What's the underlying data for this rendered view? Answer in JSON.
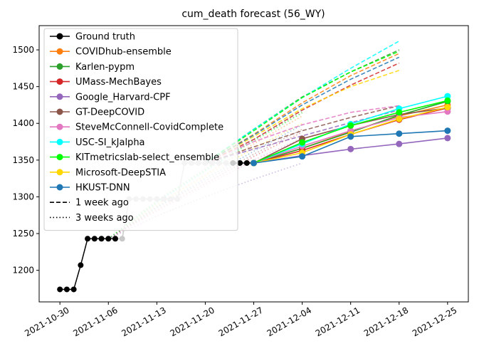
{
  "chart_data": {
    "type": "line",
    "title": "cum_death forecast (56_WY)",
    "xlabel": "",
    "ylabel": "",
    "x_ticks": [
      "2021-10-30",
      "2021-11-06",
      "2021-11-13",
      "2021-11-20",
      "2021-11-27",
      "2021-12-04",
      "2021-12-11",
      "2021-12-18",
      "2021-12-25"
    ],
    "y_ticks": [
      1200,
      1250,
      1300,
      1350,
      1400,
      1450,
      1500
    ],
    "xlim": [
      "2021-10-27",
      "2021-12-28"
    ],
    "ylim": [
      1157,
      1533
    ],
    "grid": false,
    "legend_position": "top-left",
    "legend": [
      {
        "label": "Ground truth",
        "color": "#000000",
        "style": "marker"
      },
      {
        "label": "COVIDhub-ensemble",
        "color": "#ff7f0e",
        "style": "marker"
      },
      {
        "label": "Karlen-pypm",
        "color": "#2ca02c",
        "style": "marker"
      },
      {
        "label": "UMass-MechBayes",
        "color": "#d62728",
        "style": "marker"
      },
      {
        "label": "Google_Harvard-CPF",
        "color": "#9467bd",
        "style": "marker"
      },
      {
        "label": "GT-DeepCOVID",
        "color": "#8c564b",
        "style": "marker"
      },
      {
        "label": "SteveMcConnell-CovidComplete",
        "color": "#e377c2",
        "style": "marker"
      },
      {
        "label": "USC-SI_kJalpha",
        "color": "#00ffff",
        "style": "marker"
      },
      {
        "label": "KITmetricslab-select_ensemble",
        "color": "#00ff00",
        "style": "marker"
      },
      {
        "label": "Microsoft-DeepSTIA",
        "color": "#ffd700",
        "style": "marker"
      },
      {
        "label": "HKUST-DNN",
        "color": "#1f77b4",
        "style": "marker"
      },
      {
        "label": "1 week ago",
        "color": "#000000",
        "style": "dashed"
      },
      {
        "label": "3 weeks ago",
        "color": "#000000",
        "style": "dotted"
      }
    ],
    "ground_truth": {
      "name": "Ground truth",
      "color": "#000000",
      "x": [
        "2021-10-30",
        "2021-10-31",
        "2021-11-01",
        "2021-11-02",
        "2021-11-03",
        "2021-11-04",
        "2021-11-05",
        "2021-11-06",
        "2021-11-07",
        "2021-11-08",
        "2021-11-09",
        "2021-11-10",
        "2021-11-11",
        "2021-11-12",
        "2021-11-13",
        "2021-11-14",
        "2021-11-15",
        "2021-11-16",
        "2021-11-17",
        "2021-11-18",
        "2021-11-19",
        "2021-11-20",
        "2021-11-21",
        "2021-11-22",
        "2021-11-23",
        "2021-11-24",
        "2021-11-25",
        "2021-11-26",
        "2021-11-27"
      ],
      "y": [
        1174,
        1174,
        1174,
        1207,
        1243,
        1243,
        1243,
        1243,
        1243,
        1243,
        1297,
        1297,
        1297,
        1297,
        1297,
        1297,
        1297,
        1297,
        1346,
        1346,
        1346,
        1346,
        1346,
        1346,
        1346,
        1346,
        1346,
        1346,
        1346
      ],
      "faded_after": "2021-11-07",
      "faded_before": "2021-11-24"
    },
    "current_forecasts": [
      {
        "name": "COVIDhub-ensemble",
        "color": "#ff7f0e",
        "x": [
          "2021-11-27",
          "2021-12-04",
          "2021-12-11",
          "2021-12-18",
          "2021-12-25"
        ],
        "y": [
          1346,
          1366,
          1389,
          1410,
          1425
        ]
      },
      {
        "name": "Karlen-pypm",
        "color": "#2ca02c",
        "x": [
          "2021-11-27",
          "2021-12-04",
          "2021-12-11",
          "2021-12-18",
          "2021-12-25"
        ],
        "y": [
          1346,
          1366,
          1388,
          1411,
          1430
        ]
      },
      {
        "name": "UMass-MechBayes",
        "color": "#d62728",
        "x": [
          "2021-11-27",
          "2021-12-04",
          "2021-12-11",
          "2021-12-18",
          "2021-12-25"
        ],
        "y": [
          1346,
          1363,
          1385,
          1405,
          1421
        ]
      },
      {
        "name": "Google_Harvard-CPF",
        "color": "#9467bd",
        "x": [
          "2021-11-27",
          "2021-12-04",
          "2021-12-11",
          "2021-12-18",
          "2021-12-25"
        ],
        "y": [
          1346,
          1356,
          1365,
          1372,
          1380
        ]
      },
      {
        "name": "GT-DeepCOVID",
        "color": "#8c564b",
        "x": [
          "2021-11-27",
          "2021-12-04",
          "2021-12-11",
          "2021-12-18",
          "2021-12-25"
        ],
        "y": [
          1346,
          1379,
          1397,
          1412,
          1421
        ]
      },
      {
        "name": "SteveMcConnell-CovidComplete",
        "color": "#e377c2",
        "x": [
          "2021-11-27",
          "2021-12-04",
          "2021-12-11",
          "2021-12-18",
          "2021-12-25"
        ],
        "y": [
          1346,
          1369,
          1390,
          1408,
          1416
        ]
      },
      {
        "name": "USC-SI_kJalpha",
        "color": "#00ffff",
        "x": [
          "2021-11-27",
          "2021-12-04",
          "2021-12-11",
          "2021-12-18",
          "2021-12-25"
        ],
        "y": [
          1346,
          1372,
          1399,
          1420,
          1437
        ]
      },
      {
        "name": "KITmetricslab-select_ensemble",
        "color": "#00ff00",
        "x": [
          "2021-11-27",
          "2021-12-04",
          "2021-12-11",
          "2021-12-18",
          "2021-12-25"
        ],
        "y": [
          1346,
          1374,
          1397,
          1415,
          1431
        ]
      },
      {
        "name": "Microsoft-DeepSTIA",
        "color": "#ffd700",
        "x": [
          "2021-11-27",
          "2021-12-04",
          "2021-12-11",
          "2021-12-18",
          "2021-12-25"
        ],
        "y": [
          1346,
          1360,
          1385,
          1406,
          1422
        ]
      },
      {
        "name": "HKUST-DNN",
        "color": "#1f77b4",
        "x": [
          "2021-11-27",
          "2021-12-04",
          "2021-12-11",
          "2021-12-18",
          "2021-12-25"
        ],
        "y": [
          1346,
          1355,
          1382,
          1386,
          1390
        ]
      }
    ],
    "forecasts_1_week_ago": [
      {
        "name": "COVIDhub-ensemble",
        "color": "#ff7f0e",
        "x": [
          "2021-11-20",
          "2021-11-27",
          "2021-12-04",
          "2021-12-11",
          "2021-12-18"
        ],
        "y": [
          1346,
          1385,
          1428,
          1465,
          1495
        ]
      },
      {
        "name": "Karlen-pypm",
        "color": "#2ca02c",
        "x": [
          "2021-11-20",
          "2021-11-27",
          "2021-12-04",
          "2021-12-11",
          "2021-12-18"
        ],
        "y": [
          1346,
          1392,
          1436,
          1470,
          1500
        ]
      },
      {
        "name": "UMass-MechBayes",
        "color": "#d62728",
        "x": [
          "2021-11-20",
          "2021-11-27",
          "2021-12-04",
          "2021-12-11",
          "2021-12-18"
        ],
        "y": [
          1346,
          1378,
          1418,
          1452,
          1482
        ]
      },
      {
        "name": "Google_Harvard-CPF",
        "color": "#9467bd",
        "x": [
          "2021-11-20",
          "2021-11-27",
          "2021-12-04",
          "2021-12-11",
          "2021-12-18"
        ],
        "y": [
          1346,
          1365,
          1383,
          1401,
          1418
        ]
      },
      {
        "name": "GT-DeepCOVID",
        "color": "#8c564b",
        "x": [
          "2021-11-20",
          "2021-11-27",
          "2021-12-04",
          "2021-12-11",
          "2021-12-18"
        ],
        "y": [
          1346,
          1368,
          1390,
          1408,
          1424
        ]
      },
      {
        "name": "SteveMcConnell-CovidComplete",
        "color": "#e377c2",
        "x": [
          "2021-11-20",
          "2021-11-27",
          "2021-12-04",
          "2021-12-11",
          "2021-12-18"
        ],
        "y": [
          1346,
          1375,
          1398,
          1415,
          1424
        ]
      },
      {
        "name": "USC-SI_kJalpha",
        "color": "#00ffff",
        "x": [
          "2021-11-20",
          "2021-11-27",
          "2021-12-04",
          "2021-12-11",
          "2021-12-18"
        ],
        "y": [
          1346,
          1392,
          1435,
          1475,
          1512
        ]
      },
      {
        "name": "KITmetricslab-select_ensemble",
        "color": "#00ff00",
        "x": [
          "2021-11-20",
          "2021-11-27",
          "2021-12-04",
          "2021-12-11",
          "2021-12-18"
        ],
        "y": [
          1346,
          1390,
          1435,
          1470,
          1498
        ]
      },
      {
        "name": "Microsoft-DeepSTIA",
        "color": "#ffd700",
        "x": [
          "2021-11-20",
          "2021-11-27",
          "2021-12-04",
          "2021-12-11",
          "2021-12-18"
        ],
        "y": [
          1346,
          1382,
          1420,
          1450,
          1472
        ]
      },
      {
        "name": "HKUST-DNN",
        "color": "#1f77b4",
        "x": [
          "2021-11-20",
          "2021-11-27",
          "2021-12-04",
          "2021-12-11",
          "2021-12-18"
        ],
        "y": [
          1346,
          1384,
          1425,
          1460,
          1490
        ]
      }
    ],
    "forecasts_3_weeks_ago": [
      {
        "name": "COVIDhub-ensemble",
        "color": "#ff7f0e",
        "x": [
          "2021-11-06",
          "2021-11-13",
          "2021-11-20",
          "2021-11-27",
          "2021-12-04"
        ],
        "y": [
          1243,
          1290,
          1330,
          1372,
          1410
        ]
      },
      {
        "name": "Karlen-pypm",
        "color": "#2ca02c",
        "x": [
          "2021-11-06",
          "2021-11-13",
          "2021-11-20",
          "2021-11-27",
          "2021-12-04"
        ],
        "y": [
          1243,
          1295,
          1338,
          1378,
          1415
        ]
      },
      {
        "name": "UMass-MechBayes",
        "color": "#d62728",
        "x": [
          "2021-11-06",
          "2021-11-13",
          "2021-11-20",
          "2021-11-27",
          "2021-12-04"
        ],
        "y": [
          1243,
          1282,
          1318,
          1355,
          1388
        ]
      },
      {
        "name": "Google_Harvard-CPF",
        "color": "#9467bd",
        "x": [
          "2021-11-06",
          "2021-11-13",
          "2021-11-20",
          "2021-11-27",
          "2021-12-04"
        ],
        "y": [
          1243,
          1274,
          1300,
          1324,
          1346
        ]
      },
      {
        "name": "GT-DeepCOVID",
        "color": "#8c564b",
        "x": [
          "2021-11-06",
          "2021-11-13",
          "2021-11-20",
          "2021-11-27",
          "2021-12-04"
        ],
        "y": [
          1243,
          1285,
          1322,
          1358,
          1392
        ]
      },
      {
        "name": "SteveMcConnell-CovidComplete",
        "color": "#e377c2",
        "x": [
          "2021-11-06",
          "2021-11-13",
          "2021-11-20",
          "2021-11-27",
          "2021-12-04"
        ],
        "y": [
          1243,
          1280,
          1315,
          1350,
          1380
        ]
      },
      {
        "name": "USC-SI_kJalpha",
        "color": "#00ffff",
        "x": [
          "2021-11-06",
          "2021-11-13",
          "2021-11-20",
          "2021-11-27",
          "2021-12-04"
        ],
        "y": [
          1243,
          1292,
          1335,
          1378,
          1418
        ]
      },
      {
        "name": "KITmetricslab-select_ensemble",
        "color": "#00ff00",
        "x": [
          "2021-11-06",
          "2021-11-13",
          "2021-11-20",
          "2021-11-27",
          "2021-12-04"
        ],
        "y": [
          1243,
          1293,
          1336,
          1376,
          1414
        ]
      },
      {
        "name": "Microsoft-DeepSTIA",
        "color": "#ffd700",
        "x": [
          "2021-11-06",
          "2021-11-13",
          "2021-11-20",
          "2021-11-27",
          "2021-12-04"
        ],
        "y": [
          1243,
          1288,
          1328,
          1366,
          1400
        ]
      },
      {
        "name": "HKUST-DNN",
        "color": "#1f77b4",
        "x": [
          "2021-11-06",
          "2021-11-13",
          "2021-11-20",
          "2021-11-27",
          "2021-12-04"
        ],
        "y": [
          1243,
          1286,
          1325,
          1362,
          1398
        ]
      }
    ]
  }
}
